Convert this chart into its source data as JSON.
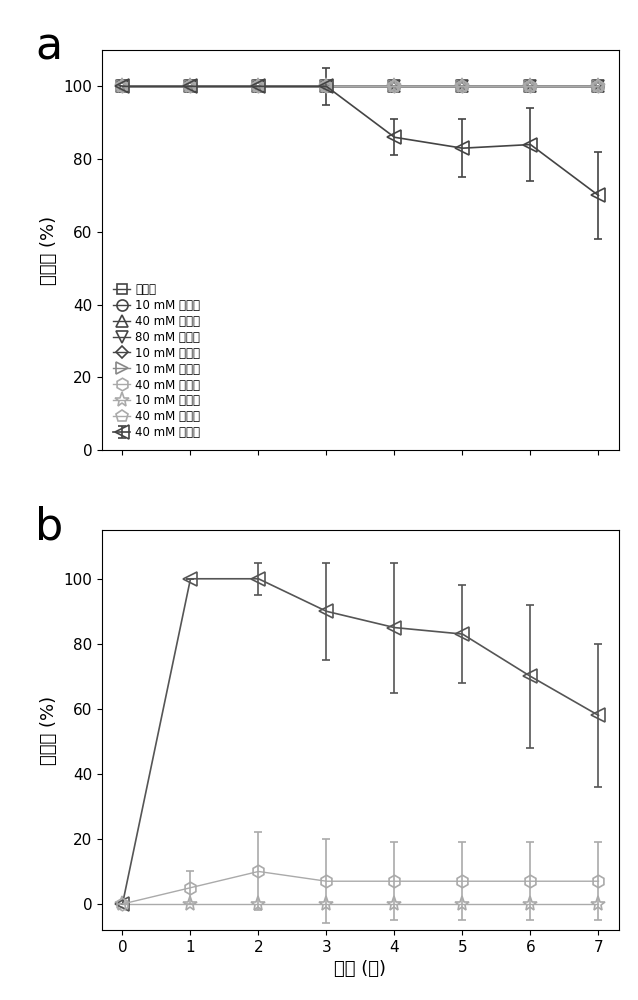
{
  "panel_a": {
    "ylabel": "存活率 (%)",
    "xlim": [
      -0.3,
      7.3
    ],
    "ylim": [
      0,
      110
    ],
    "yticks": [
      0,
      20,
      40,
      60,
      80,
      100
    ],
    "xticks": [
      0,
      1,
      2,
      3,
      4,
      5,
      6,
      7
    ],
    "series": [
      {
        "label": "对照组",
        "marker": "s",
        "x": [
          0,
          1,
          2,
          3,
          4,
          5,
          6,
          7
        ],
        "y": [
          100,
          100,
          100,
          100,
          100,
          100,
          100,
          100
        ],
        "yerr": [
          0,
          0,
          0,
          0,
          0,
          0,
          0,
          0
        ],
        "color": "#444444",
        "markersize": 7,
        "linestyle": "-",
        "lw": 1.0
      },
      {
        "label": "10 mM 氯化钠",
        "marker": "o",
        "x": [
          0,
          1,
          2,
          3,
          4,
          5,
          6,
          7
        ],
        "y": [
          100,
          100,
          100,
          100,
          100,
          100,
          100,
          100
        ],
        "yerr": [
          0,
          0,
          0,
          0,
          0,
          0,
          0,
          0
        ],
        "color": "#444444",
        "markersize": 8,
        "linestyle": "-",
        "lw": 1.0
      },
      {
        "label": "40 mM 氯化钠",
        "marker": "^",
        "x": [
          0,
          1,
          2,
          3,
          4,
          5,
          6,
          7
        ],
        "y": [
          100,
          100,
          100,
          100,
          100,
          100,
          100,
          100
        ],
        "yerr": [
          0,
          0,
          0,
          0,
          0,
          0,
          0,
          0
        ],
        "color": "#444444",
        "markersize": 8,
        "linestyle": "-",
        "lw": 1.0
      },
      {
        "label": "80 mM 氯化钠",
        "marker": "v",
        "x": [
          0,
          1,
          2,
          3,
          4,
          5,
          6,
          7
        ],
        "y": [
          100,
          100,
          100,
          100,
          100,
          100,
          100,
          100
        ],
        "yerr": [
          0,
          0,
          0,
          0,
          0,
          0,
          0,
          0
        ],
        "color": "#444444",
        "markersize": 8,
        "linestyle": "-",
        "lw": 1.0
      },
      {
        "label": "10 mM 氯化钙",
        "marker": "D",
        "x": [
          0,
          1,
          2,
          3,
          4,
          5,
          6,
          7
        ],
        "y": [
          100,
          100,
          100,
          100,
          100,
          100,
          100,
          100
        ],
        "yerr": [
          0,
          0,
          0,
          0,
          0,
          0,
          0,
          0
        ],
        "color": "#444444",
        "markersize": 6,
        "linestyle": "-",
        "lw": 1.0
      },
      {
        "label": "40 mM 氯化钙",
        "marker": "<",
        "x": [
          0,
          1,
          2,
          3,
          4,
          5,
          6,
          7
        ],
        "y": [
          100,
          100,
          100,
          100,
          86,
          83,
          84,
          70
        ],
        "yerr": [
          0,
          0,
          0,
          5,
          5,
          8,
          10,
          12
        ],
        "color": "#444444",
        "markersize": 10,
        "linestyle": "-",
        "lw": 1.2
      },
      {
        "label": "10 mM 硫酸钙",
        "marker": ">",
        "x": [
          0,
          1,
          2,
          3,
          4,
          5,
          6,
          7
        ],
        "y": [
          100,
          100,
          100,
          100,
          100,
          100,
          100,
          100
        ],
        "yerr": [
          0,
          0,
          0,
          0,
          0,
          0,
          0,
          0
        ],
        "color": "#888888",
        "markersize": 8,
        "linestyle": "-",
        "lw": 1.0
      },
      {
        "label": "40 mM 硫酸钙",
        "marker": "h",
        "x": [
          0,
          1,
          2,
          3,
          4,
          5,
          6,
          7
        ],
        "y": [
          100,
          100,
          100,
          100,
          100,
          100,
          100,
          100
        ],
        "yerr": [
          0,
          0,
          0,
          0,
          0,
          0,
          0,
          0
        ],
        "color": "#aaaaaa",
        "markersize": 9,
        "linestyle": "-",
        "lw": 1.0
      },
      {
        "label": "10 mM 碳酸钙",
        "marker": "*",
        "x": [
          0,
          1,
          2,
          3,
          4,
          5,
          6,
          7
        ],
        "y": [
          100,
          100,
          100,
          100,
          100,
          100,
          100,
          100
        ],
        "yerr": [
          0,
          0,
          0,
          0,
          0,
          0,
          0,
          0
        ],
        "color": "#aaaaaa",
        "markersize": 11,
        "linestyle": "-",
        "lw": 1.0
      },
      {
        "label": "40 mM 碳酸钙",
        "marker": "p",
        "x": [
          0,
          1,
          2,
          3,
          4,
          5,
          6,
          7
        ],
        "y": [
          100,
          100,
          100,
          100,
          100,
          100,
          100,
          100
        ],
        "yerr": [
          0,
          0,
          0,
          0,
          0,
          0,
          0,
          0
        ],
        "color": "#aaaaaa",
        "markersize": 9,
        "linestyle": "-",
        "lw": 1.0
      }
    ]
  },
  "panel_b": {
    "ylabel": "附着率 (%)",
    "xlabel": "时间 (天)",
    "xlim": [
      -0.3,
      7.3
    ],
    "ylim": [
      -8,
      115
    ],
    "yticks": [
      0,
      20,
      40,
      60,
      80,
      100
    ],
    "xticks": [
      0,
      1,
      2,
      3,
      4,
      5,
      6,
      7
    ],
    "series": [
      {
        "label": "40 mM 氯化钙",
        "marker": "<",
        "x": [
          0,
          1,
          2,
          3,
          4,
          5,
          6,
          7
        ],
        "y": [
          0,
          100,
          100,
          90,
          85,
          83,
          70,
          58
        ],
        "yerr": [
          0,
          0,
          5,
          15,
          20,
          15,
          22,
          22
        ],
        "color": "#555555",
        "markersize": 10,
        "linestyle": "-",
        "lw": 1.2
      },
      {
        "label": "40 mM 硫酸钙",
        "marker": "h",
        "x": [
          0,
          1,
          2,
          3,
          4,
          5,
          6,
          7
        ],
        "y": [
          0,
          5,
          10,
          7,
          7,
          7,
          7,
          7
        ],
        "yerr": [
          0,
          5,
          12,
          13,
          12,
          12,
          12,
          12
        ],
        "color": "#aaaaaa",
        "markersize": 9,
        "linestyle": "-",
        "lw": 1.0
      },
      {
        "label": "10 mM 碳酸钙",
        "marker": "*",
        "x": [
          0,
          1,
          2,
          3,
          4,
          5,
          6,
          7
        ],
        "y": [
          0,
          0,
          0,
          0,
          0,
          0,
          0,
          0
        ],
        "yerr": [
          0,
          0,
          0,
          0,
          0,
          0,
          0,
          0
        ],
        "color": "#aaaaaa",
        "markersize": 11,
        "linestyle": "-",
        "lw": 1.0
      }
    ]
  },
  "legend_labels": [
    "对照组",
    "10 mM 氯化钠",
    "40 mM 氯化钠",
    "80 mM 氯化钠",
    "10 mM 氯化钙",
    "40 mM 氯化钙",
    "10 mM 硫酸钙",
    "40 mM 硫酸钙",
    "10 mM 碳酸钙",
    "40 mM 碳酸钙"
  ]
}
